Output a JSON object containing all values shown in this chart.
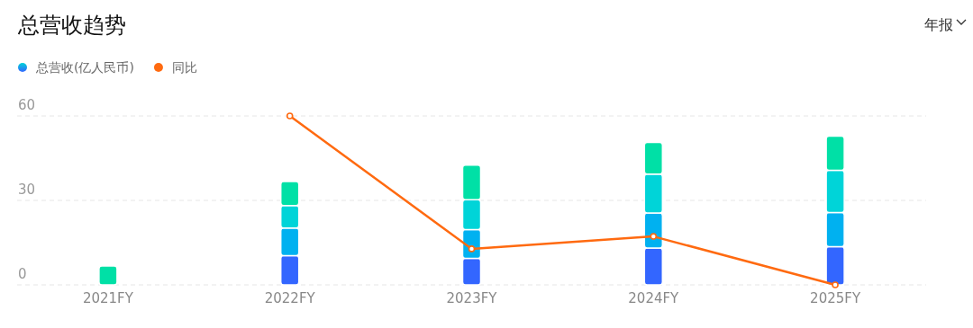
{
  "chart_data": {
    "type": "bar",
    "title": "总营收趋势",
    "annotations": [
      "年报"
    ],
    "categories": [
      "2021FY",
      "2022FY",
      "2023FY",
      "2024FY",
      "2025FY"
    ],
    "stacked": true,
    "grid": "y",
    "legend": "top left",
    "ylim": [
      0,
      60
    ],
    "yticks": [
      0,
      30,
      60
    ],
    "series": [
      {
        "name": "总营收(亿人民币)",
        "color": "#3366ff",
        "values": [
          null,
          10.4,
          9.4,
          13.1,
          13.6
        ]
      },
      {
        "color": "#00b1f0",
        "values": [
          null,
          9.8,
          10.2,
          12.4,
          12.1
        ]
      },
      {
        "color": "#00d4d8",
        "values": [
          null,
          8.0,
          10.6,
          13.8,
          15.0
        ]
      },
      {
        "color": "#00e0a6",
        "values": [
          6.7,
          8.5,
          12.3,
          11.3,
          12.1
        ]
      },
      {
        "name": "同比",
        "type": "line",
        "color": "#ff6a10",
        "marker": "circle",
        "line_style": "solid",
        "values": [
          null,
          60,
          12.8,
          17.2,
          0
        ]
      }
    ]
  }
}
